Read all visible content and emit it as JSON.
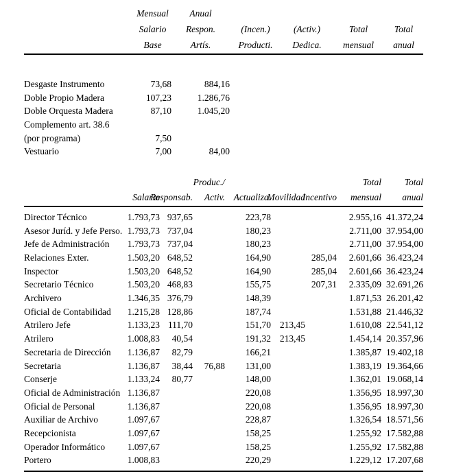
{
  "page": {
    "background_color": "#ffffff",
    "text_color": "#000000"
  },
  "supplements_table": {
    "headers": [
      {
        "lines": [
          "Mensual",
          "Salario",
          "Base"
        ]
      },
      {
        "lines": [
          "Anual",
          "Respon.",
          "Artís."
        ]
      },
      {
        "lines": [
          "",
          "(Incen.)",
          "Producti."
        ]
      },
      {
        "lines": [
          "",
          "(Activ.)",
          "Dedica."
        ]
      },
      {
        "lines": [
          "",
          "Total",
          "mensual"
        ]
      },
      {
        "lines": [
          "",
          "Total",
          "anual"
        ]
      }
    ],
    "rows": [
      {
        "label": "Desgaste Instrumento",
        "values": [
          "73,68",
          "884,16",
          "",
          "",
          "",
          ""
        ]
      },
      {
        "label": "Doble Propio Madera",
        "values": [
          "107,23",
          "1.286,76",
          "",
          "",
          "",
          ""
        ]
      },
      {
        "label": "Doble Orquesta Madera",
        "values": [
          "87,10",
          "1.045,20",
          "",
          "",
          "",
          ""
        ]
      },
      {
        "label": "Complemento art. 38.6",
        "values": [
          "",
          "",
          "",
          "",
          "",
          ""
        ]
      },
      {
        "label": "(por programa)",
        "values": [
          "7,50",
          "",
          "",
          "",
          "",
          ""
        ]
      },
      {
        "label": "Vestuario",
        "values": [
          "7,00",
          "84,00",
          "",
          "",
          "",
          ""
        ]
      }
    ]
  },
  "staff_table": {
    "headers": [
      {
        "lines": [
          "",
          "Salario"
        ]
      },
      {
        "lines": [
          "",
          "Responsab."
        ]
      },
      {
        "lines": [
          "Produc./",
          "Activ."
        ]
      },
      {
        "lines": [
          "",
          "Actualiza."
        ]
      },
      {
        "lines": [
          "",
          "Movilidad"
        ]
      },
      {
        "lines": [
          "",
          "Incentivo"
        ]
      },
      {
        "lines": [
          "Total",
          "mensual"
        ]
      },
      {
        "lines": [
          "Total",
          "anual"
        ]
      }
    ],
    "rows": [
      {
        "label": "Director Técnico",
        "values": [
          "1.793,73",
          "937,65",
          "",
          "223,78",
          "",
          "",
          "2.955,16",
          "41.372,24"
        ]
      },
      {
        "label": "Asesor Juríd. y Jefe Perso.",
        "values": [
          "1.793,73",
          "737,04",
          "",
          "180,23",
          "",
          "",
          "2.711,00",
          "37.954,00"
        ]
      },
      {
        "label": "Jefe de Administración",
        "values": [
          "1.793,73",
          "737,04",
          "",
          "180,23",
          "",
          "",
          "2.711,00",
          "37.954,00"
        ]
      },
      {
        "label": "Relaciones Exter.",
        "values": [
          "1.503,20",
          "648,52",
          "",
          "164,90",
          "",
          "285,04",
          "2.601,66",
          "36.423,24"
        ]
      },
      {
        "label": "Inspector",
        "values": [
          "1.503,20",
          "648,52",
          "",
          "164,90",
          "",
          "285,04",
          "2.601,66",
          "36.423,24"
        ]
      },
      {
        "label": "Secretario Técnico",
        "values": [
          "1.503,20",
          "468,83",
          "",
          "155,75",
          "",
          "207,31",
          "2.335,09",
          "32.691,26"
        ]
      },
      {
        "label": "Archivero",
        "values": [
          "1.346,35",
          "376,79",
          "",
          "148,39",
          "",
          "",
          "1.871,53",
          "26.201,42"
        ]
      },
      {
        "label": "Oficial de Contabilidad",
        "values": [
          "1.215,28",
          "128,86",
          "",
          "187,74",
          "",
          "",
          "1.531,88",
          "21.446,32"
        ]
      },
      {
        "label": "Atrilero Jefe",
        "values": [
          "1.133,23",
          "111,70",
          "",
          "151,70",
          "213,45",
          "",
          "1.610,08",
          "22.541,12"
        ]
      },
      {
        "label": "Atrilero",
        "values": [
          "1.008,83",
          "40,54",
          "",
          "191,32",
          "213,45",
          "",
          "1.454,14",
          "20.357,96"
        ]
      },
      {
        "label": "Secretaria de Dirección",
        "values": [
          "1.136,87",
          "82,79",
          "",
          "166,21",
          "",
          "",
          "1.385,87",
          "19.402,18"
        ]
      },
      {
        "label": "Secretaria",
        "values": [
          "1.136,87",
          "38,44",
          "76,88",
          "131,00",
          "",
          "",
          "1.383,19",
          "19.364,66"
        ]
      },
      {
        "label": "Conserje",
        "values": [
          "1.133,24",
          "80,77",
          "",
          "148,00",
          "",
          "",
          "1.362,01",
          "19.068,14"
        ]
      },
      {
        "label": "Oficial de Administración",
        "values": [
          "1.136,87",
          "",
          "",
          "220,08",
          "",
          "",
          "1.356,95",
          "18.997,30"
        ]
      },
      {
        "label": "Oficial de Personal",
        "values": [
          "1.136,87",
          "",
          "",
          "220,08",
          "",
          "",
          "1.356,95",
          "18.997,30"
        ]
      },
      {
        "label": "Auxiliar de Archivo",
        "values": [
          "1.097,67",
          "",
          "",
          "228,87",
          "",
          "",
          "1.326,54",
          "18.571,56"
        ]
      },
      {
        "label": "Recepcionista",
        "values": [
          "1.097,67",
          "",
          "",
          "158,25",
          "",
          "",
          "1.255,92",
          "17.582,88"
        ]
      },
      {
        "label": "Operador Informático",
        "values": [
          "1.097,67",
          "",
          "",
          "158,25",
          "",
          "",
          "1.255,92",
          "17.582,88"
        ]
      },
      {
        "label": "Portero",
        "values": [
          "1.008,83",
          "",
          "",
          "220,29",
          "",
          "",
          "1.229,12",
          "17.207,68"
        ]
      }
    ]
  }
}
